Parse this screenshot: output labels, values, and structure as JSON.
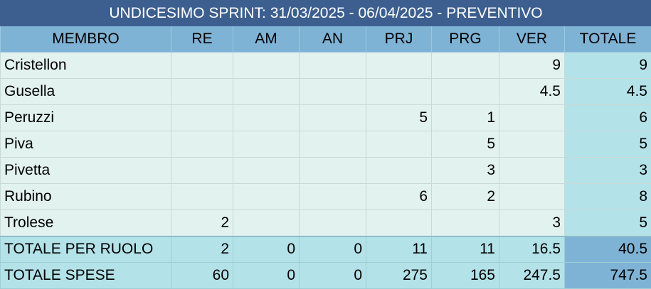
{
  "title": "UNDICESIMO SPRINT: 31/03/2025 - 06/04/2025 - PREVENTIVO",
  "headers": [
    "MEMBRO",
    "RE",
    "AM",
    "AN",
    "PRJ",
    "PRG",
    "VER",
    "TOTALE"
  ],
  "rows": [
    {
      "name": "Cristellon",
      "cells": [
        "",
        "",
        "",
        "",
        "",
        "9"
      ],
      "total": "9"
    },
    {
      "name": "Gusella",
      "cells": [
        "",
        "",
        "",
        "",
        "",
        "4.5"
      ],
      "total": "4.5"
    },
    {
      "name": "Peruzzi",
      "cells": [
        "",
        "",
        "",
        "5",
        "1",
        ""
      ],
      "total": "6"
    },
    {
      "name": "Piva",
      "cells": [
        "",
        "",
        "",
        "",
        "5",
        ""
      ],
      "total": "5"
    },
    {
      "name": "Pivetta",
      "cells": [
        "",
        "",
        "",
        "",
        "3",
        ""
      ],
      "total": "3"
    },
    {
      "name": "Rubino",
      "cells": [
        "",
        "",
        "",
        "6",
        "2",
        ""
      ],
      "total": "8"
    },
    {
      "name": "Trolese",
      "cells": [
        "2",
        "",
        "",
        "",
        "",
        "3"
      ],
      "total": "5"
    }
  ],
  "totals_by_role": {
    "label": "TOTALE PER RUOLO",
    "cells": [
      "2",
      "0",
      "0",
      "11",
      "11",
      "16.5"
    ],
    "total": "40.5"
  },
  "total_costs": {
    "label": "TOTALE SPESE",
    "cells": [
      "60",
      "0",
      "0",
      "275",
      "165",
      "247.5"
    ],
    "total": "747.5"
  }
}
